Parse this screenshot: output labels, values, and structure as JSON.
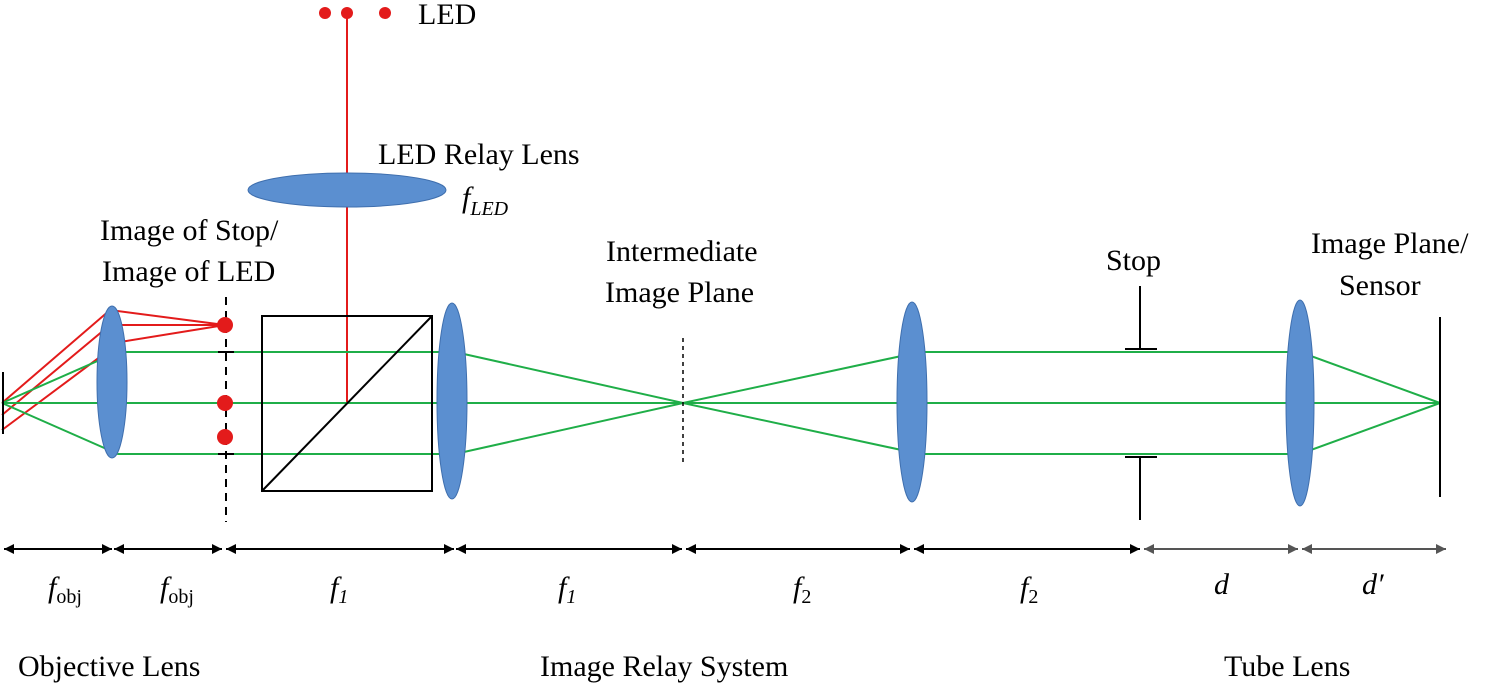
{
  "labels": {
    "led": "LED",
    "led_relay_lens": "LED Relay Lens",
    "image_of_stop_line1": "Image of Stop/",
    "image_of_stop_line2": "Image of LED",
    "intermediate_line1": "Intermediate",
    "intermediate_line2": "Image Plane",
    "stop": "Stop",
    "image_plane_line1": "Image Plane/",
    "image_plane_line2": "Sensor"
  },
  "symbols": {
    "f_led_base": "f",
    "f_led_sub": "LED",
    "f_obj_base": "f",
    "f_obj_sub": "obj",
    "f1_base": "f",
    "f1_sub": "1",
    "f2_base": "f",
    "f2_sub": "2",
    "d": "d",
    "d_prime": "d′"
  },
  "sections": {
    "objective": "Objective Lens",
    "relay": "Image Relay System",
    "tube": "Tube Lens"
  },
  "colors": {
    "lens": "#5b8fd0",
    "lens_stroke": "#3f6fae",
    "green_ray": "#1fae48",
    "red_ray": "#e31b1b",
    "black": "#000000",
    "arrow_gray": "#555555"
  }
}
